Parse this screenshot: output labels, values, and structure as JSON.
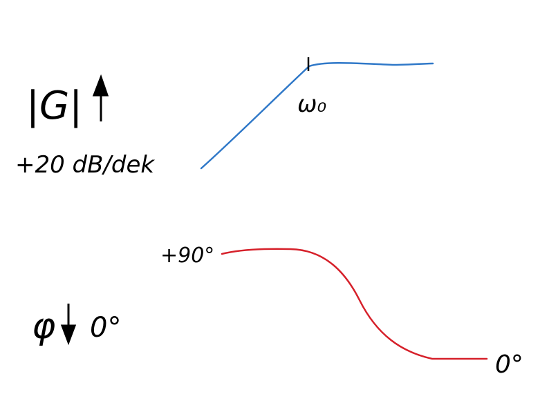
{
  "magnitude": {
    "symbol": "|G|",
    "slope_label": "+20 dB/dek",
    "corner_label": "ω₀",
    "curve_color": "#2f78c8"
  },
  "phase": {
    "symbol": "φ",
    "zero_label": "0°",
    "start_label": "+90°",
    "end_label": "0°",
    "curve_color": "#d6202a"
  },
  "icons": {
    "magnitude_arrow": "arrow-up-icon",
    "phase_arrow": "arrow-down-icon"
  }
}
